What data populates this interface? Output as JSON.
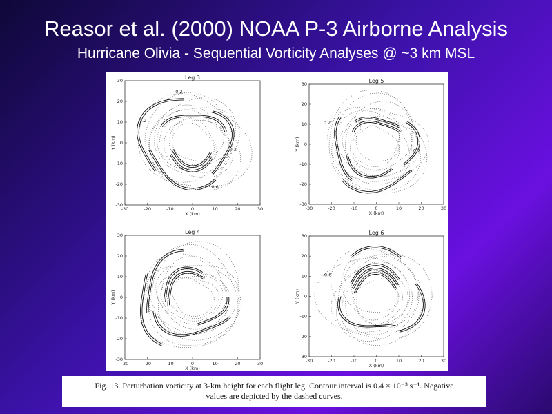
{
  "slide": {
    "title": "Reasor et al. (2000) NOAA P-3 Airborne Analysis",
    "subtitle": "Hurricane Olivia - Sequential Vorticity Analyses @ ~3 km MSL"
  },
  "figure": {
    "panels": [
      {
        "label": "Leg 3",
        "contour_labels": [
          "0.2",
          "0.2",
          "0.6",
          "0.2"
        ]
      },
      {
        "label": "Leg 5",
        "contour_labels": [
          "0.2",
          "0.2"
        ]
      },
      {
        "label": "Leg 4",
        "contour_labels": []
      },
      {
        "label": "Leg 6",
        "contour_labels": [
          "-0.6"
        ]
      }
    ],
    "x_ticks": [
      "-30",
      "-20",
      "-10",
      "0",
      "10",
      "20",
      "30"
    ],
    "y_ticks": [
      "30",
      "20",
      "10",
      "0",
      "-10",
      "-20",
      "-30"
    ],
    "xlabel": "X (km)",
    "ylabel": "Y (km)"
  },
  "caption": {
    "line1": "Fig. 13. Perturbation vorticity at 3-km height for each flight leg. Contour interval is 0.4 × 10⁻³ s⁻¹. Negative",
    "line2": "values are depicted by the dashed curves."
  }
}
